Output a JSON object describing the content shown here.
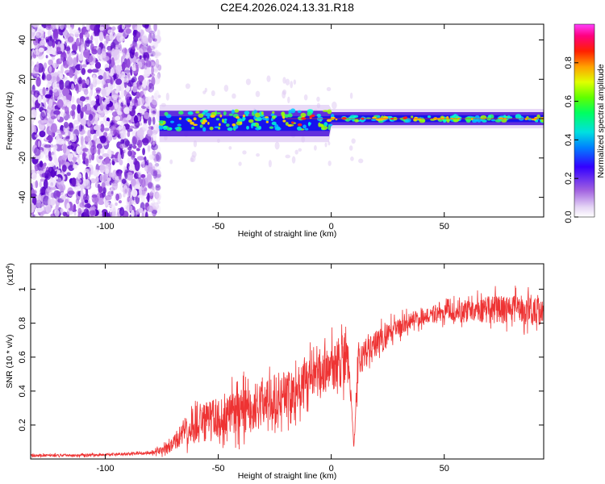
{
  "chart_data": [
    {
      "type": "heatmap",
      "title": "C2E4.2026.024.13.31.R18",
      "xlabel": "Height of straight line (km)",
      "ylabel": "Frequency (Hz)",
      "xlim": [
        -133,
        94
      ],
      "ylim": [
        -50,
        48
      ],
      "xticks": [
        -100,
        -50,
        0,
        50
      ],
      "yticks": [
        -40,
        -20,
        0,
        20,
        40
      ],
      "colorbar": {
        "label": "Normalized spectral amplitude",
        "range": [
          0.0,
          1.0
        ],
        "ticks": [
          0.0,
          0.2,
          0.4,
          0.6,
          0.8
        ],
        "tick_labels": [
          "0.0",
          "0.2",
          "0.4",
          "0.6",
          "0.8"
        ]
      },
      "features": {
        "noise_region_x": [
          -133,
          -76
        ],
        "signal_centerline_hz": 0,
        "signal_band_hz": [
          -8,
          5
        ],
        "peak_height_km": [
          0,
          25
        ]
      }
    },
    {
      "type": "line",
      "xlabel": "Height of straight line (km)",
      "ylabel": "SNR (10 * v/v)",
      "y_scale_label": "(x10",
      "y_scale_exp": "4",
      "y_scale_close": ")",
      "xlim": [
        -133,
        94
      ],
      "ylim": [
        0,
        1.15
      ],
      "xticks": [
        -100,
        -50,
        0,
        50
      ],
      "yticks": [
        0.2,
        0.4,
        0.6,
        0.8,
        1.0
      ],
      "series": [
        {
          "name": "SNR",
          "color": "#ee3333",
          "envelope_x": [
            -133,
            -100,
            -80,
            -72,
            -65,
            -55,
            -45,
            -35,
            -25,
            -15,
            -5,
            5,
            8,
            10,
            12,
            18,
            25,
            35,
            50,
            60,
            70,
            80,
            94
          ],
          "envelope_mean": [
            0.02,
            0.025,
            0.035,
            0.06,
            0.16,
            0.22,
            0.26,
            0.3,
            0.36,
            0.42,
            0.5,
            0.58,
            0.55,
            0.06,
            0.58,
            0.66,
            0.74,
            0.82,
            0.86,
            0.87,
            0.88,
            0.88,
            0.88
          ],
          "envelope_spread": [
            0.01,
            0.01,
            0.01,
            0.04,
            0.1,
            0.15,
            0.16,
            0.18,
            0.16,
            0.17,
            0.15,
            0.2,
            0.15,
            0.02,
            0.12,
            0.1,
            0.08,
            0.06,
            0.06,
            0.08,
            0.1,
            0.1,
            0.12
          ]
        }
      ]
    }
  ]
}
